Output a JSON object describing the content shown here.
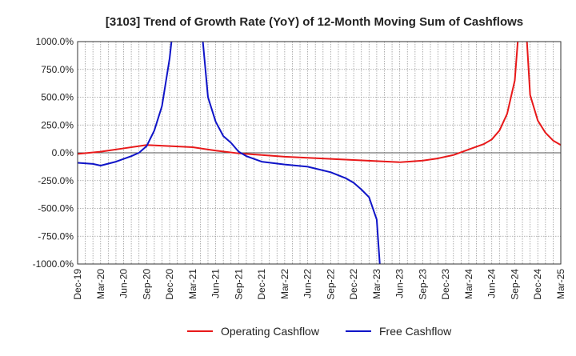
{
  "chart_data": {
    "type": "line",
    "title": "[3103]  Trend of Growth Rate (YoY) of 12-Month Moving Sum of Cashflows",
    "xlabel": "",
    "ylabel": "",
    "ylim": [
      -1000,
      1000
    ],
    "yticks": [
      1000,
      750,
      500,
      250,
      0,
      -250,
      -500,
      -750,
      -1000
    ],
    "ytick_labels": [
      "1000.0%",
      "750.0%",
      "500.0%",
      "250.0%",
      "0.0%",
      "-250.0%",
      "-500.0%",
      "-750.0%",
      "-1000.0%"
    ],
    "xticks": [
      "Dec-19",
      "Mar-20",
      "Jun-20",
      "Sep-20",
      "Dec-20",
      "Mar-21",
      "Jun-21",
      "Sep-21",
      "Dec-21",
      "Mar-22",
      "Jun-22",
      "Sep-22",
      "Dec-22",
      "Mar-23",
      "Jun-23",
      "Sep-23",
      "Dec-23",
      "Mar-24",
      "Jun-24",
      "Sep-24",
      "Dec-24",
      "Mar-25"
    ],
    "grid": true,
    "legend_position": "bottom",
    "series": [
      {
        "name": "Operating Cashflow",
        "color": "#e8191a",
        "values": [
          [
            0,
            -10
          ],
          [
            3,
            10
          ],
          [
            6,
            40
          ],
          [
            9,
            70
          ],
          [
            12,
            60
          ],
          [
            15,
            50
          ],
          [
            18,
            20
          ],
          [
            21,
            -5
          ],
          [
            24,
            -20
          ],
          [
            27,
            -35
          ],
          [
            30,
            -45
          ],
          [
            33,
            -55
          ],
          [
            36,
            -65
          ],
          [
            39,
            -75
          ],
          [
            42,
            -85
          ],
          [
            45,
            -70
          ],
          [
            47,
            -50
          ],
          [
            49,
            -20
          ],
          [
            51,
            30
          ],
          [
            53,
            80
          ],
          [
            54,
            120
          ],
          [
            55,
            200
          ],
          [
            56,
            350
          ],
          [
            57,
            650
          ],
          [
            57.5,
            1100
          ],
          [
            58.5,
            1100
          ],
          [
            59,
            520
          ],
          [
            60,
            290
          ],
          [
            61,
            180
          ],
          [
            62,
            110
          ],
          [
            63,
            70
          ],
          [
            64,
            50
          ]
        ]
      },
      {
        "name": "Free Cashflow",
        "color": "#0f14c8",
        "values": [
          [
            0,
            -90
          ],
          [
            2,
            -100
          ],
          [
            3,
            -115
          ],
          [
            5,
            -80
          ],
          [
            7,
            -30
          ],
          [
            8,
            0
          ],
          [
            9,
            60
          ],
          [
            10,
            200
          ],
          [
            11,
            420
          ],
          [
            12,
            850
          ],
          [
            12.4,
            1100
          ],
          null,
          [
            16.2,
            1100
          ],
          [
            17,
            500
          ],
          [
            18,
            280
          ],
          [
            19,
            150
          ],
          [
            20,
            90
          ],
          [
            21,
            10
          ],
          [
            22,
            -30
          ],
          [
            24,
            -80
          ],
          [
            27,
            -105
          ],
          [
            30,
            -125
          ],
          [
            33,
            -175
          ],
          [
            35,
            -230
          ],
          [
            36,
            -270
          ],
          [
            37,
            -330
          ],
          [
            38,
            -400
          ],
          [
            39,
            -600
          ],
          [
            39.5,
            -1100
          ]
        ]
      }
    ]
  }
}
